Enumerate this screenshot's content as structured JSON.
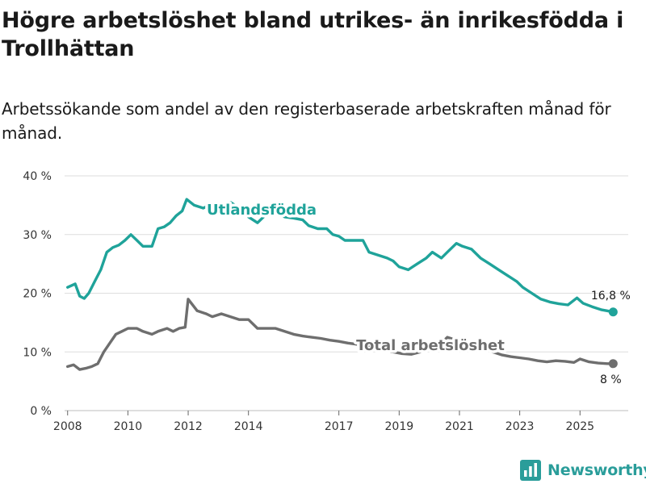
{
  "title": "Högre arbetslöshet bland utrikes- än inrikesfödda i Trollhättan",
  "subtitle": "Arbetssökande som andel av den registerbaserade arbetskraften månad för månad.",
  "brand": {
    "name": "Newsworthy",
    "icon": "bar-chart-logo-icon",
    "color": "#2a9d9a"
  },
  "chart_data": {
    "type": "line",
    "title": "Högre arbetslöshet bland utrikes- än inrikesfödda i Trollhättan",
    "xlabel": "",
    "ylabel": "",
    "xlim": [
      2007.9,
      2026.6
    ],
    "ylim": [
      0,
      40
    ],
    "grid": true,
    "y_ticks": [
      0,
      10,
      20,
      30,
      40
    ],
    "y_tick_labels": [
      "0 %",
      "10 %",
      "20 %",
      "30 %",
      "40 %"
    ],
    "x_ticks": [
      2008,
      2010,
      2012,
      2014,
      2017,
      2019,
      2021,
      2023,
      2025
    ],
    "x_tick_labels": [
      "2008",
      "2010",
      "2012",
      "2014",
      "2017",
      "2019",
      "2021",
      "2023",
      "2025"
    ],
    "series": [
      {
        "name": "Utlandsfödda",
        "color": "#1fa39a",
        "label": "Utlandsfödda",
        "end_label": "16,8 %",
        "x": [
          2008.0,
          2008.25,
          2008.4,
          2008.55,
          2008.7,
          2008.9,
          2009.1,
          2009.3,
          2009.5,
          2009.7,
          2009.9,
          2010.1,
          2010.3,
          2010.5,
          2010.8,
          2011.0,
          2011.2,
          2011.4,
          2011.6,
          2011.8,
          2011.95,
          2012.2,
          2012.5,
          2012.8,
          2013.1,
          2013.4,
          2013.7,
          2014.0,
          2014.3,
          2014.6,
          2014.9,
          2015.2,
          2015.5,
          2015.8,
          2016.0,
          2016.3,
          2016.6,
          2016.8,
          2017.0,
          2017.2,
          2017.5,
          2017.8,
          2018.0,
          2018.3,
          2018.6,
          2018.8,
          2019.0,
          2019.3,
          2019.6,
          2019.9,
          2020.1,
          2020.4,
          2020.6,
          2020.9,
          2021.1,
          2021.4,
          2021.7,
          2022.0,
          2022.3,
          2022.6,
          2022.9,
          2023.1,
          2023.4,
          2023.7,
          2024.0,
          2024.3,
          2024.6,
          2024.9,
          2025.1,
          2025.4,
          2025.7,
          2025.9,
          2026.1
        ],
        "values": [
          21.0,
          21.6,
          19.5,
          19.1,
          20.0,
          22.0,
          24.0,
          27.0,
          27.8,
          28.2,
          29.0,
          30.0,
          29.0,
          28.0,
          28.0,
          31.0,
          31.3,
          32.0,
          33.2,
          34.0,
          36.0,
          35.0,
          34.5,
          35.2,
          35.0,
          35.5,
          34.5,
          33.0,
          32.0,
          33.5,
          33.8,
          33.0,
          32.8,
          32.5,
          31.5,
          31.0,
          31.0,
          30.0,
          29.7,
          29.0,
          29.0,
          29.0,
          27.0,
          26.5,
          26.0,
          25.5,
          24.5,
          24.0,
          25.0,
          26.0,
          27.0,
          26.0,
          27.0,
          28.5,
          28.0,
          27.5,
          26.0,
          25.0,
          24.0,
          23.0,
          22.0,
          21.0,
          20.0,
          19.0,
          18.5,
          18.2,
          18.0,
          19.2,
          18.3,
          17.7,
          17.2,
          17.0,
          16.8
        ]
      },
      {
        "name": "Total arbetslöshet",
        "color": "#6e6e6e",
        "label": "Total arbetslöshet",
        "end_label": "8 %",
        "x": [
          2008.0,
          2008.2,
          2008.4,
          2008.6,
          2008.8,
          2009.0,
          2009.2,
          2009.4,
          2009.6,
          2009.8,
          2010.0,
          2010.3,
          2010.5,
          2010.8,
          2011.0,
          2011.3,
          2011.5,
          2011.7,
          2011.9,
          2012.0,
          2012.3,
          2012.6,
          2012.8,
          2013.1,
          2013.4,
          2013.7,
          2014.0,
          2014.3,
          2014.6,
          2014.9,
          2015.2,
          2015.5,
          2015.8,
          2016.1,
          2016.4,
          2016.7,
          2017.0,
          2017.3,
          2017.6,
          2017.9,
          2018.2,
          2018.5,
          2018.8,
          2019.1,
          2019.4,
          2019.7,
          2020.0,
          2020.3,
          2020.6,
          2020.9,
          2021.2,
          2021.5,
          2021.8,
          2022.1,
          2022.4,
          2022.7,
          2023.0,
          2023.3,
          2023.6,
          2023.9,
          2024.2,
          2024.5,
          2024.8,
          2025.0,
          2025.3,
          2025.6,
          2025.9,
          2026.1
        ],
        "values": [
          7.5,
          7.8,
          7.0,
          7.2,
          7.5,
          8.0,
          10.0,
          11.5,
          13.0,
          13.5,
          14.0,
          14.0,
          13.5,
          13.0,
          13.5,
          14.0,
          13.5,
          14.0,
          14.2,
          19.0,
          17.0,
          16.5,
          16.0,
          16.5,
          16.0,
          15.5,
          15.5,
          14.0,
          14.0,
          14.0,
          13.5,
          13.0,
          12.7,
          12.5,
          12.3,
          12.0,
          11.8,
          11.5,
          11.3,
          11.0,
          10.5,
          10.2,
          10.0,
          9.7,
          9.6,
          10.0,
          10.5,
          11.0,
          12.5,
          12.0,
          11.5,
          11.0,
          10.5,
          10.0,
          9.5,
          9.2,
          9.0,
          8.8,
          8.5,
          8.3,
          8.5,
          8.4,
          8.2,
          8.8,
          8.3,
          8.1,
          8.0,
          8.0
        ]
      }
    ],
    "annotations": [
      {
        "text": "Utlandsfödda",
        "series": "Utlandsfödda"
      },
      {
        "text": "Total arbetslöshet",
        "series": "Total arbetslöshet"
      }
    ]
  }
}
